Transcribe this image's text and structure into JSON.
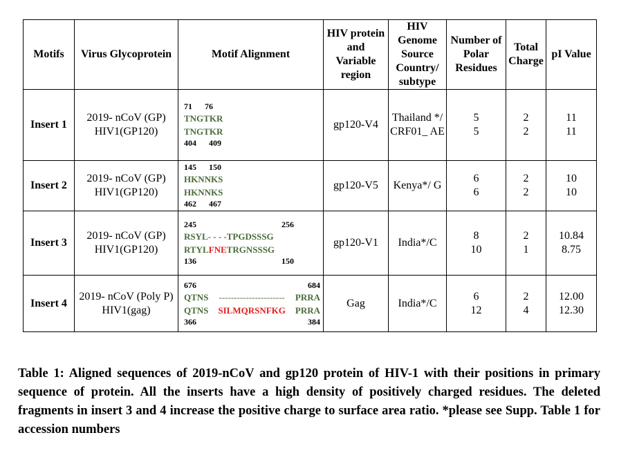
{
  "headers": {
    "motifs": "Motifs",
    "virus_glycoprotein": "Virus Glycoprotein",
    "motif_alignment": "Motif Alignment",
    "hiv_protein": "HIV protein and Variable region",
    "hiv_genome": "HIV Genome Source Country/ subtype",
    "polar": "Number of Polar Residues",
    "charge": "Total Charge",
    "pi": "pI Value"
  },
  "rows": [
    {
      "motif": "Insert 1",
      "glyco": [
        "2019- nCoV (GP)",
        "HIV1(GP120)"
      ],
      "pos_top": [
        "71",
        "76"
      ],
      "seq1": "TNGTKR",
      "seq2": "TNGTKR",
      "pos_bottom": [
        "404",
        "409"
      ],
      "hiv_protein": "gp120-V4",
      "country": "Thailand */ CRF01_ AE",
      "polar": [
        "5",
        "5"
      ],
      "charge": [
        "2",
        "2"
      ],
      "pi": [
        "11",
        "11"
      ]
    },
    {
      "motif": "Insert 2",
      "glyco": [
        "2019- nCoV (GP)",
        "HIV1(GP120)"
      ],
      "pos_top": [
        "145",
        "150"
      ],
      "seq1": "HKNNKS",
      "seq2": "HKNNKS",
      "pos_bottom": [
        "462",
        "467"
      ],
      "hiv_protein": "gp120-V5",
      "country": "Kenya*/ G",
      "polar": [
        "6",
        "6"
      ],
      "charge": [
        "2",
        "2"
      ],
      "pi": [
        "10",
        "10"
      ]
    },
    {
      "motif": "Insert 3",
      "glyco": [
        "2019- nCoV (GP)",
        "HIV1(GP120)"
      ],
      "pos_top": [
        "245",
        "256"
      ],
      "seq1": "RSYL- - - -TPGDSSSG",
      "seq2_a": "RTYL",
      "seq2_red": "FNE",
      "seq2_b": "TRGNSSSG",
      "pos_bottom": [
        "136",
        "150"
      ],
      "hiv_protein": "gp120-V1",
      "country": "India*/C",
      "polar": [
        "8",
        "10"
      ],
      "charge": [
        "2",
        "1"
      ],
      "pi": [
        "10.84",
        "8.75"
      ]
    },
    {
      "motif": "Insert 4",
      "glyco": [
        "2019- nCoV (Poly P)",
        "HIV1(gag)"
      ],
      "pos_top": [
        "676",
        "684"
      ],
      "seq1_a": "QTNS",
      "seq1_gap": "----------------------",
      "seq1_b": "PRRA",
      "seq2_a": "QTNS",
      "seq2_red": "SILMQRSNFKG",
      "seq2_b": "PRRA",
      "pos_bottom": [
        "366",
        "384"
      ],
      "hiv_protein": "Gag",
      "country": "India*/C",
      "polar": [
        "6",
        "12"
      ],
      "charge": [
        "2",
        "4"
      ],
      "pi": [
        "12.00",
        "12.30"
      ]
    }
  ],
  "caption": "Table 1: Aligned sequences of 2019-nCoV and gp120 protein of HIV-1 with their positions in primary sequence of protein. All the inserts have a high density of positively charged residues. The deleted fragments in insert 3 and 4 increase the positive charge to surface area ratio. *please see Supp. Table 1 for accession numbers",
  "colors": {
    "sequence": "#4a6b3a",
    "highlight": "#e02020",
    "text": "#000000"
  }
}
